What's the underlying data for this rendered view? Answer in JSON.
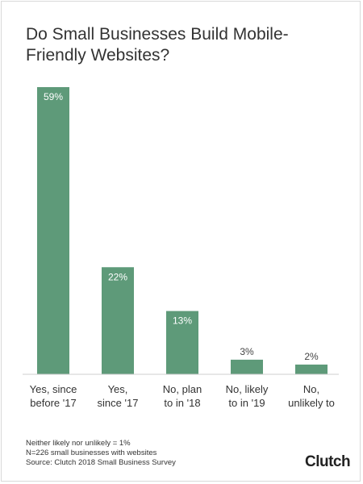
{
  "title": "Do Small Businesses Build Mobile-Friendly Websites?",
  "colors": {
    "bar": "#5e9a79",
    "axis": "#cfcfcf",
    "label_inside": "#ffffff",
    "label_outside": "#444444"
  },
  "chart_data": {
    "type": "bar",
    "title": "Do Small Businesses Build Mobile-Friendly Websites?",
    "categories": [
      [
        "Yes, since",
        "before '17"
      ],
      [
        "Yes,",
        "since '17"
      ],
      [
        "No, plan",
        "to in '18"
      ],
      [
        "No, likely",
        "to in '19"
      ],
      [
        "No,",
        "unlikely to"
      ]
    ],
    "values": [
      59,
      22,
      13,
      3,
      2
    ],
    "value_labels": [
      "59%",
      "22%",
      "13%",
      "3%",
      "2%"
    ],
    "ylim": [
      0,
      59
    ],
    "grid": false,
    "legend": "none",
    "xlabel": "",
    "ylabel": ""
  },
  "footnotes": [
    "Neither likely nor unlikely = 1%",
    "N=226 small businesses with websites",
    "Source: Clutch 2018 Small Business Survey"
  ],
  "logo": "Clutch"
}
